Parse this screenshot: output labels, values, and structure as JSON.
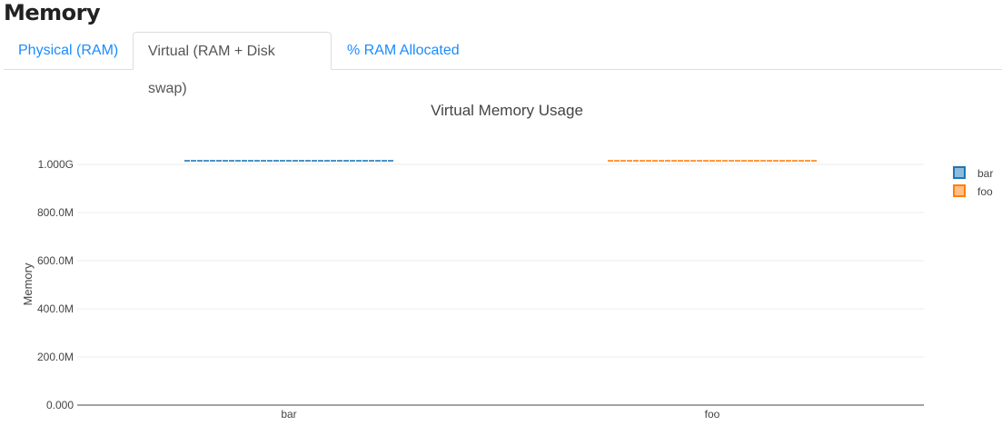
{
  "header": {
    "title": "Memory"
  },
  "tabs": [
    {
      "label": "Physical (RAM)",
      "active": false
    },
    {
      "label": "Virtual (RAM + Disk swap)",
      "active": true
    },
    {
      "label": "% RAM Allocated",
      "active": false
    }
  ],
  "chart_data": {
    "type": "box",
    "title": "Virtual Memory Usage",
    "xlabel": "",
    "ylabel": "Memory",
    "categories": [
      "bar",
      "foo"
    ],
    "yticks": [
      "0.000",
      "200.0M",
      "400.0M",
      "600.0M",
      "800.0M",
      "1.000G"
    ],
    "ylim": [
      0,
      1000000000
    ],
    "grid": true,
    "legend_position": "right",
    "series": [
      {
        "name": "bar",
        "color": "#1f77b4",
        "values": [
          1015000000
        ]
      },
      {
        "name": "foo",
        "color": "#ff7f0e",
        "values": [
          1015000000
        ]
      }
    ]
  }
}
